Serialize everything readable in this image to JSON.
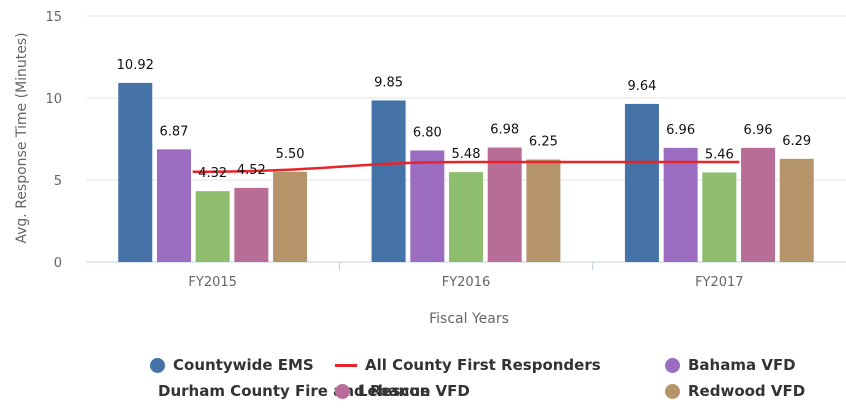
{
  "chart_data": {
    "type": "bar",
    "ylabel": "Avg. Response Time (Minutes)",
    "xlabel": "Fiscal Years",
    "ylim": [
      0,
      15
    ],
    "yticks": [
      0,
      5,
      10,
      15
    ],
    "grid": true,
    "legend_position": "bottom",
    "categories": [
      "FY2015",
      "FY2016",
      "FY2017"
    ],
    "series": [
      {
        "name": "Countywide EMS",
        "color": "#4572a7",
        "values": [
          10.92,
          9.85,
          9.64
        ],
        "labels": [
          "10.92",
          "9.85",
          "9.64"
        ]
      },
      {
        "name": "Bahama VFD",
        "color": "#9b6cc0",
        "values": [
          6.87,
          6.8,
          6.96
        ],
        "labels": [
          "6.87",
          "6.80",
          "6.96"
        ]
      },
      {
        "name": "Durham County Fire and Rescue",
        "color": "#8dbd6d",
        "values": [
          4.32,
          5.48,
          5.46
        ],
        "labels": [
          "4.32",
          "5.48",
          "5.46"
        ]
      },
      {
        "name": "Lebanon VFD",
        "color": "#b86d96",
        "values": [
          4.52,
          6.98,
          6.96
        ],
        "labels": [
          "4.52",
          "6.98",
          "6.96"
        ]
      },
      {
        "name": "Redwood VFD",
        "color": "#b6946a",
        "values": [
          5.5,
          6.25,
          6.29
        ],
        "labels": [
          "5.50",
          "6.25",
          "6.29"
        ]
      }
    ],
    "line_series": {
      "name": "All County First Responders",
      "color": "#e8232a",
      "values": [
        5.5,
        6.1,
        6.1
      ]
    }
  },
  "legend": {
    "items": [
      {
        "name": "Countywide EMS",
        "color": "#4572a7",
        "kind": "dot"
      },
      {
        "name": "All County First Responders",
        "color": "#e8232a",
        "kind": "line"
      },
      {
        "name": "Bahama VFD",
        "color": "#9b6cc0",
        "kind": "dot"
      },
      {
        "name": "Durham County Fire and Rescue",
        "color": "#8dbd6d",
        "kind": "dot"
      },
      {
        "name": "Lebanon VFD",
        "color": "#b86d96",
        "kind": "dot"
      },
      {
        "name": "Redwood VFD",
        "color": "#b6946a",
        "kind": "dot"
      }
    ]
  }
}
